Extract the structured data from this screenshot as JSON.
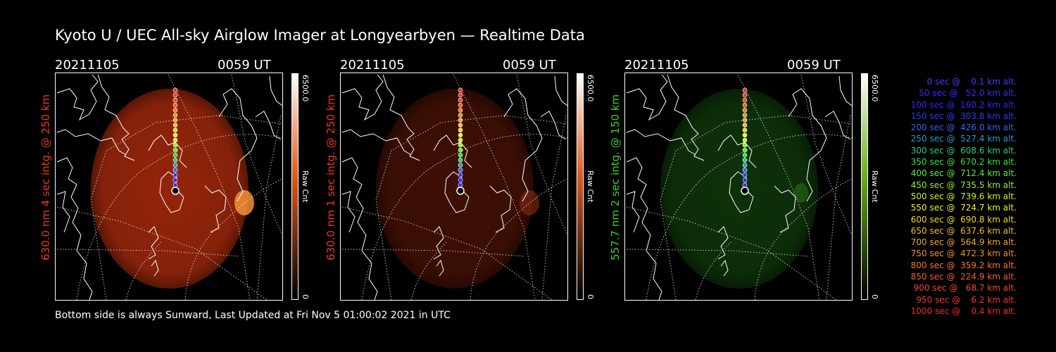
{
  "title": "Kyoto U / UEC All-sky Airglow Imager at Longyearbyen — Realtime Data",
  "footer": "Bottom side is always Sunward, Last Updated at Fri Nov  5 01:00:02 2021 in UTC",
  "panels": [
    {
      "date": "20211105",
      "time": "0059 UT",
      "ylabel": "630.0 nm 4 sec intg. @ 250 km",
      "ylabel_color": "#e83a1a",
      "glow": "#a82a0c",
      "glow_opacity": 0.88,
      "cbar_max": "6500.0",
      "cbar_unit": "Raw Cnt",
      "cbar_min": "0",
      "cbar_top": "#ffffff",
      "cbar_mid": "#e05a1a",
      "cbar_bottom": "#000000"
    },
    {
      "date": "20211105",
      "time": "0059 UT",
      "ylabel": "630.0 nm 1 sec intg. @ 250 km",
      "ylabel_color": "#e83a1a",
      "glow": "#4a1206",
      "glow_opacity": 0.85,
      "cbar_max": "6500.0",
      "cbar_unit": "Raw Cnt",
      "cbar_min": "0",
      "cbar_top": "#ffffff",
      "cbar_mid": "#e05a1a",
      "cbar_bottom": "#000000"
    },
    {
      "date": "20211105",
      "time": "0059 UT",
      "ylabel": "557.7 nm 2 sec intg. @ 150 km",
      "ylabel_color": "#3ad41a",
      "glow": "#0f3a0a",
      "glow_opacity": 0.85,
      "cbar_max": "6500.0",
      "cbar_unit": "Raw Cnt",
      "cbar_min": "0",
      "cbar_top": "#ffffff",
      "cbar_mid": "#6ab01a",
      "cbar_bottom": "#000000"
    }
  ],
  "altitude_list": [
    {
      "text": "   0 sec @    0.1 km alt.",
      "color": "#4a3aff"
    },
    {
      "text": "  50 sec @   52.0 km alt.",
      "color": "#3a2aff"
    },
    {
      "text": " 100 sec @  160.2 km alt.",
      "color": "#2a2aff"
    },
    {
      "text": " 150 sec @  303.8 km alt.",
      "color": "#2a3aff"
    },
    {
      "text": " 200 sec @  426.0 km alt.",
      "color": "#2a6ae8"
    },
    {
      "text": " 250 sec @  527.4 km alt.",
      "color": "#2a9ac8"
    },
    {
      "text": " 300 sec @  608.6 km alt.",
      "color": "#2ad07a"
    },
    {
      "text": " 350 sec @  670.2 km alt.",
      "color": "#2ae83a"
    },
    {
      "text": " 400 sec @  712.4 km alt.",
      "color": "#5af02a"
    },
    {
      "text": " 450 sec @  735.5 km alt.",
      "color": "#9af02a"
    },
    {
      "text": " 500 sec @  739.6 km alt.",
      "color": "#d0f02a"
    },
    {
      "text": " 550 sec @  724.7 km alt.",
      "color": "#f0f02a"
    },
    {
      "text": " 600 sec @  690.8 km alt.",
      "color": "#f0d82a"
    },
    {
      "text": " 650 sec @  637.6 km alt.",
      "color": "#f0c02a"
    },
    {
      "text": " 700 sec @  564.9 km alt.",
      "color": "#f0a82a"
    },
    {
      "text": " 750 sec @  472.3 km alt.",
      "color": "#f0902a"
    },
    {
      "text": " 800 sec @  359.2 km alt.",
      "color": "#f07a2a"
    },
    {
      "text": " 850 sec @  224.9 km alt.",
      "color": "#f0622a"
    },
    {
      "text": " 900 sec @   68.7 km alt.",
      "color": "#f04a2a"
    },
    {
      "text": " 950 sec @    6.2 km alt.",
      "color": "#f0382a"
    },
    {
      "text": "1000 sec @    0.4 km alt.",
      "color": "#f02a2a"
    }
  ]
}
